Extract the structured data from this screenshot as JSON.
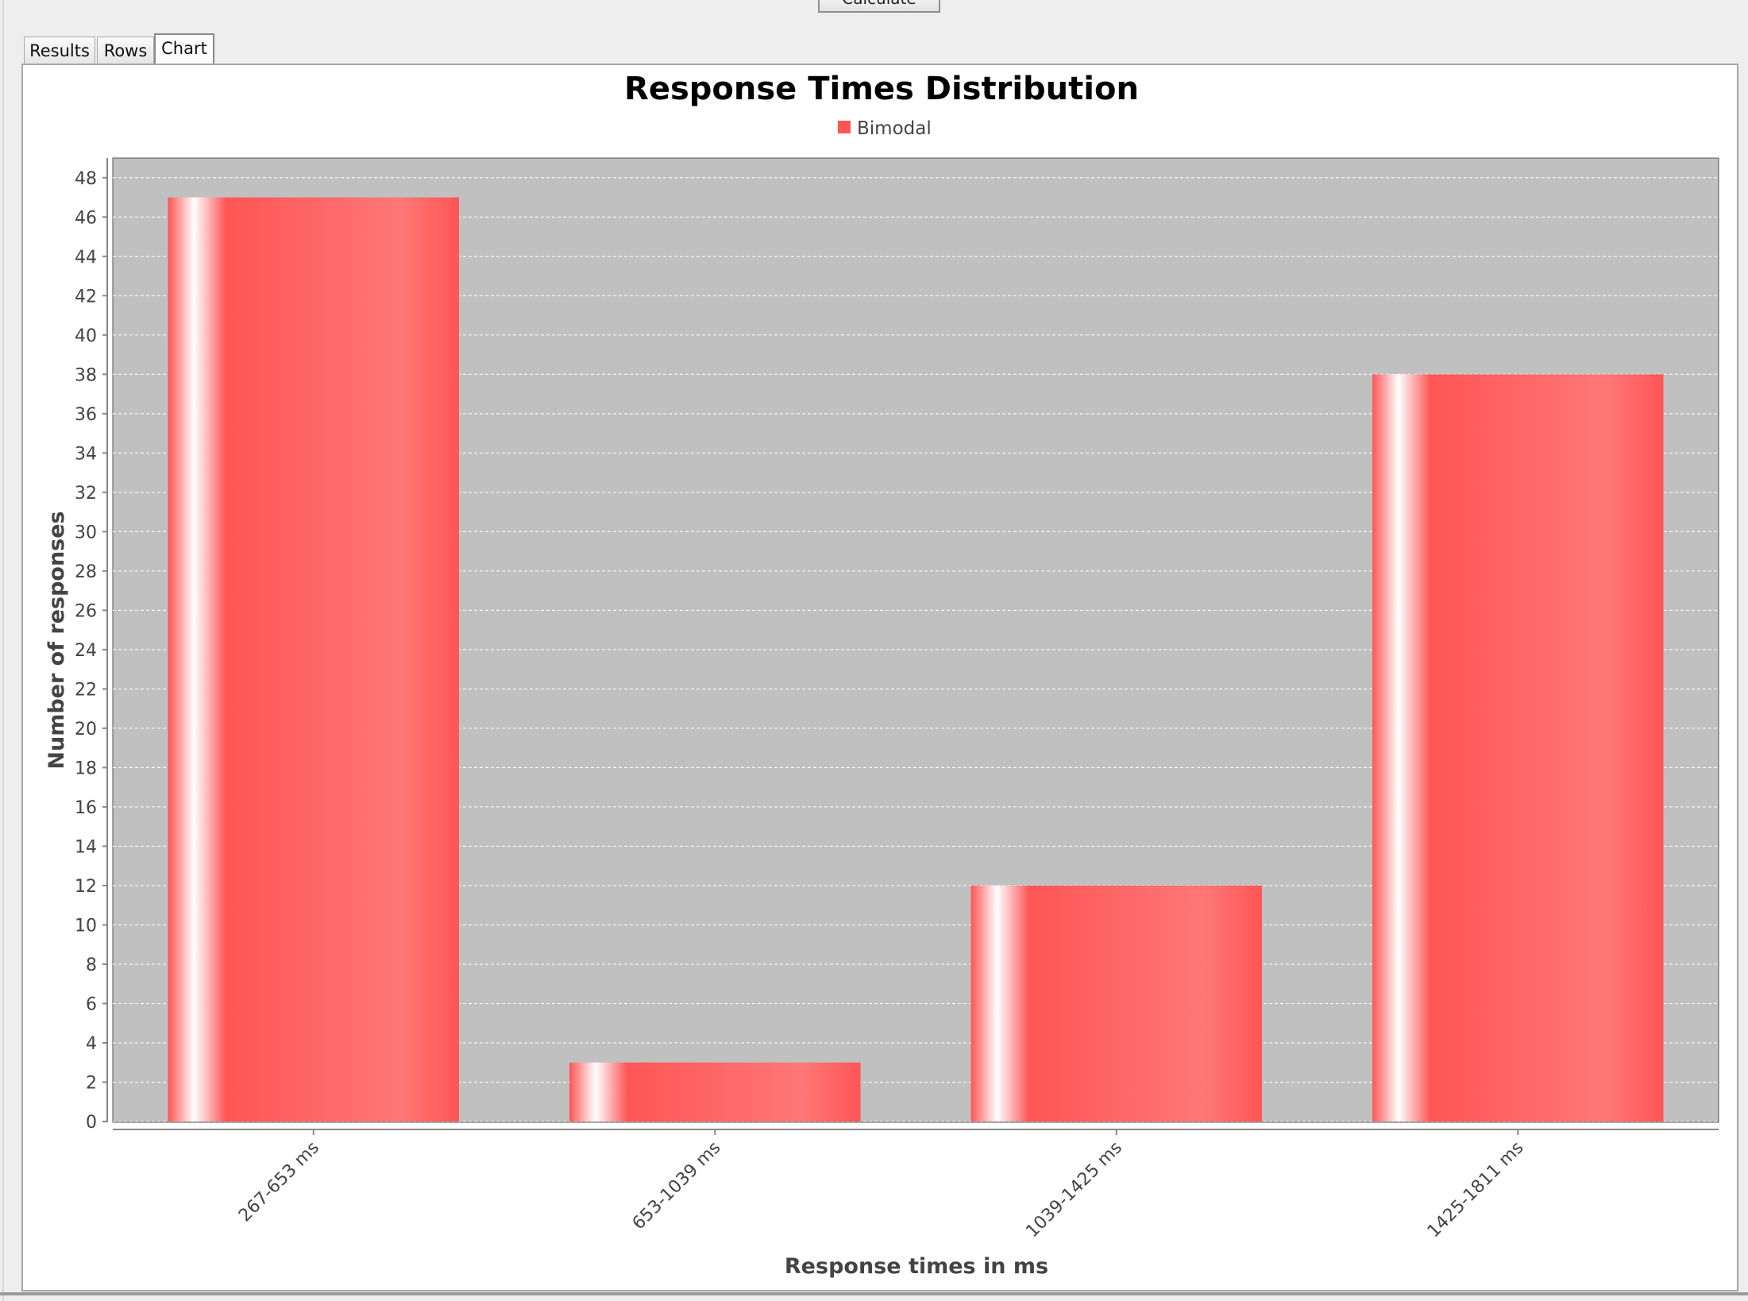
{
  "toolbar": {
    "calculate_label": "Calculate"
  },
  "tabs": [
    {
      "label": "Results",
      "active": false
    },
    {
      "label": "Rows",
      "active": false
    },
    {
      "label": "Chart",
      "active": true
    }
  ],
  "colors": {
    "bar": "#ff5555",
    "plot_background": "#c0c0c0",
    "gridline": "#ffffff"
  },
  "chart_data": {
    "type": "bar",
    "title": "Response Times Distribution",
    "xlabel": "Response times in ms",
    "ylabel": "Number of responses",
    "categories": [
      "267-653 ms",
      "653-1039 ms",
      "1039-1425 ms",
      "1425-1811 ms"
    ],
    "series": [
      {
        "name": "Bimodal",
        "values": [
          47,
          3,
          12,
          38
        ]
      }
    ],
    "ylim": [
      0,
      49
    ],
    "yticks": [
      0,
      2,
      4,
      6,
      8,
      10,
      12,
      14,
      16,
      18,
      20,
      22,
      24,
      26,
      28,
      30,
      32,
      34,
      36,
      38,
      40,
      42,
      44,
      46,
      48
    ],
    "grid": true,
    "legend": "top-center"
  }
}
